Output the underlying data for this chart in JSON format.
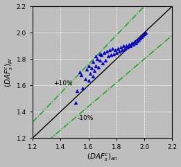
{
  "xlim": [
    1.2,
    2.2
  ],
  "ylim": [
    1.2,
    2.2
  ],
  "xticks": [
    1.2,
    1.4,
    1.6,
    1.8,
    2.0,
    2.2
  ],
  "yticks": [
    1.2,
    1.4,
    1.6,
    1.8,
    2.0,
    2.2
  ],
  "background_color": "#bebebe",
  "grid_color": "#ffffff",
  "marker_color": "#0000cc",
  "line_color": "#000000",
  "band_color": "#00aa00",
  "label_plus10": "+10%",
  "label_minus10": "-10%",
  "scatter_x": [
    1.51,
    1.52,
    1.54,
    1.55,
    1.56,
    1.58,
    1.59,
    1.6,
    1.6,
    1.61,
    1.62,
    1.63,
    1.63,
    1.64,
    1.65,
    1.65,
    1.66,
    1.67,
    1.68,
    1.68,
    1.69,
    1.7,
    1.71,
    1.72,
    1.73,
    1.74,
    1.75,
    1.76,
    1.77,
    1.78,
    1.79,
    1.8,
    1.81,
    1.82,
    1.83,
    1.84,
    1.85,
    1.86,
    1.87,
    1.88,
    1.89,
    1.9,
    1.91,
    1.92,
    1.93,
    1.94,
    1.95,
    1.96,
    1.97,
    1.98,
    1.99,
    2.0,
    2.01
  ],
  "scatter_y": [
    1.47,
    1.56,
    1.7,
    1.68,
    1.58,
    1.65,
    1.72,
    1.64,
    1.75,
    1.69,
    1.73,
    1.67,
    1.78,
    1.71,
    1.82,
    1.75,
    1.8,
    1.74,
    1.84,
    1.79,
    1.83,
    1.77,
    1.85,
    1.79,
    1.86,
    1.82,
    1.87,
    1.83,
    1.88,
    1.84,
    1.87,
    1.85,
    1.88,
    1.86,
    1.89,
    1.87,
    1.9,
    1.88,
    1.9,
    1.89,
    1.91,
    1.9,
    1.92,
    1.91,
    1.93,
    1.92,
    1.94,
    1.95,
    1.96,
    1.97,
    1.98,
    1.99,
    2.0
  ]
}
